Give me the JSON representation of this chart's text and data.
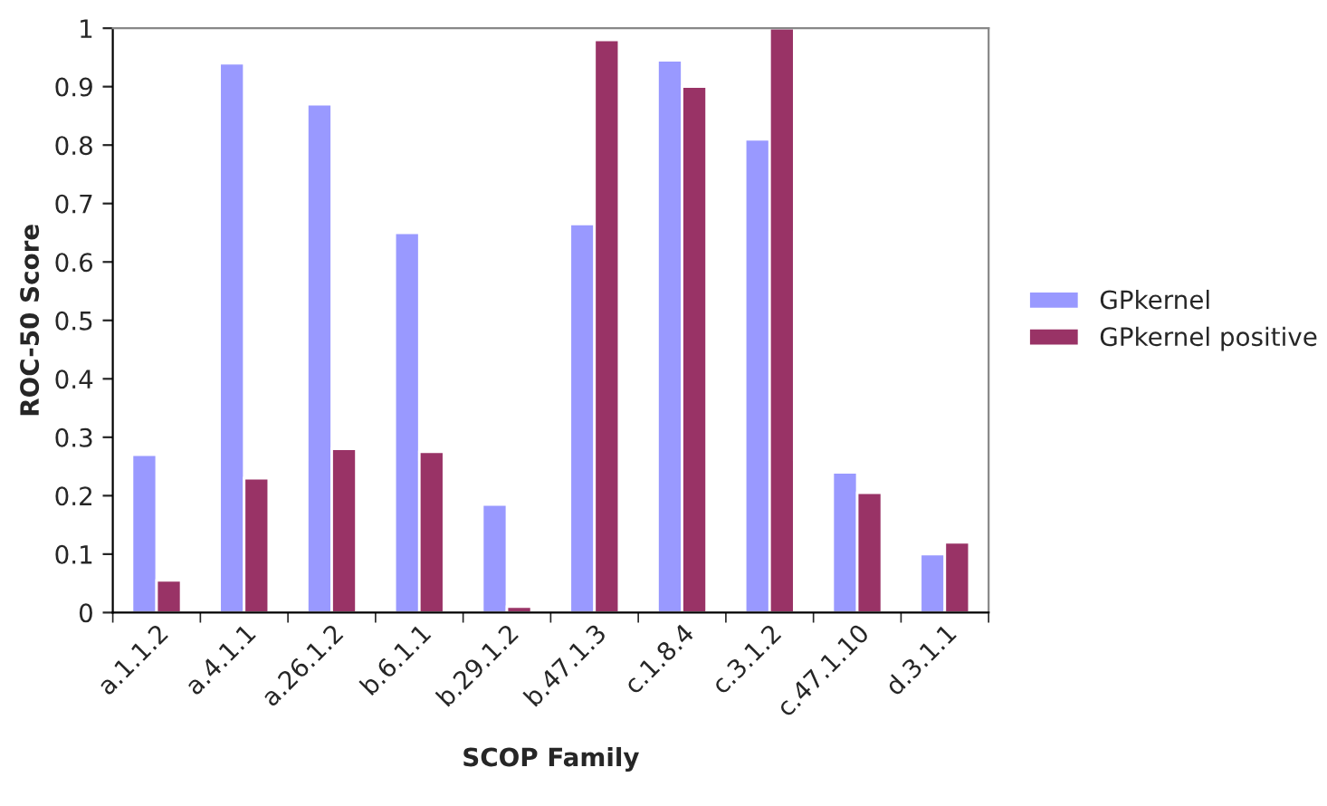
{
  "chart_data": {
    "type": "bar",
    "xlabel": "SCOP Family",
    "ylabel": "ROC-50 Score",
    "categories": [
      "a.1.1.2",
      "a.4.1.1",
      "a.26.1.2",
      "b.6.1.1",
      "b.29.1.2",
      "b.47.1.3",
      "c.1.8.4",
      "c.3.1.2",
      "c.47.1.10",
      "d.3.1.1"
    ],
    "series": [
      {
        "name": "GPkernel",
        "color": "#9999ff",
        "values": [
          0.27,
          0.94,
          0.87,
          0.65,
          0.185,
          0.665,
          0.945,
          0.81,
          0.24,
          0.1
        ]
      },
      {
        "name": "GPkernel positive",
        "color": "#993366",
        "values": [
          0.055,
          0.23,
          0.28,
          0.275,
          0.01,
          0.98,
          0.9,
          1.0,
          0.205,
          0.12
        ]
      }
    ],
    "ylim": [
      0,
      1
    ],
    "yticks": [
      0,
      0.1,
      0.2,
      0.3,
      0.4,
      0.5,
      0.6,
      0.7,
      0.8,
      0.9,
      1
    ],
    "grid": false,
    "legend": "right"
  }
}
